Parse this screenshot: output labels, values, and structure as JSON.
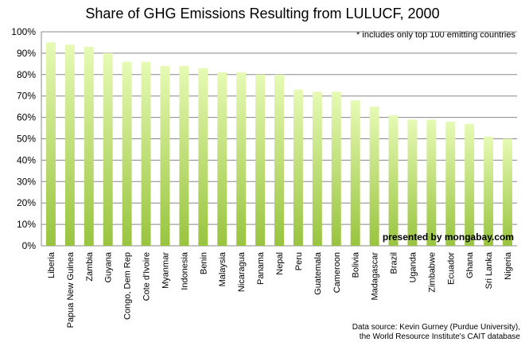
{
  "chart_data": {
    "type": "bar",
    "title": "Share of GHG Emissions Resulting from LULUCF, 2000",
    "annotation": "* includes only top 100 emitting countries",
    "watermark": "presented by mongabay.com",
    "source_line1": "Data source: Kevin Gurney (Purdue University),",
    "source_line2": "the World Resource Institute's CAIT database",
    "xlabel": "",
    "ylabel": "",
    "ylim": [
      0,
      100
    ],
    "yticks": [
      "0%",
      "10%",
      "20%",
      "30%",
      "40%",
      "50%",
      "60%",
      "70%",
      "80%",
      "90%",
      "100%"
    ],
    "grid": true,
    "categories": [
      "Liberia",
      "Papua New Guinea",
      "Zambia",
      "Guyana",
      "Congo, Dem Rep",
      "Cote d'Ivoire",
      "Myanmar",
      "Indonesia",
      "Benin",
      "Malaysia",
      "Nicaragua",
      "Panama",
      "Nepal",
      "Peru",
      "Guatemala",
      "Cameroon",
      "Bolivia",
      "Madagascar",
      "Brazil",
      "Uganda",
      "Zimbabwe",
      "Ecuador",
      "Ghana",
      "Sri Lanka",
      "Nigeria"
    ],
    "values": [
      95,
      94,
      93,
      90,
      86,
      86,
      84,
      84,
      83,
      81,
      81,
      80,
      80,
      73,
      72,
      72,
      68,
      65,
      61,
      59,
      59,
      58,
      57,
      51,
      50
    ],
    "bar_color_top": "#e6fab4",
    "bar_color_bottom": "#99c43f",
    "grid_color": "#888888"
  }
}
